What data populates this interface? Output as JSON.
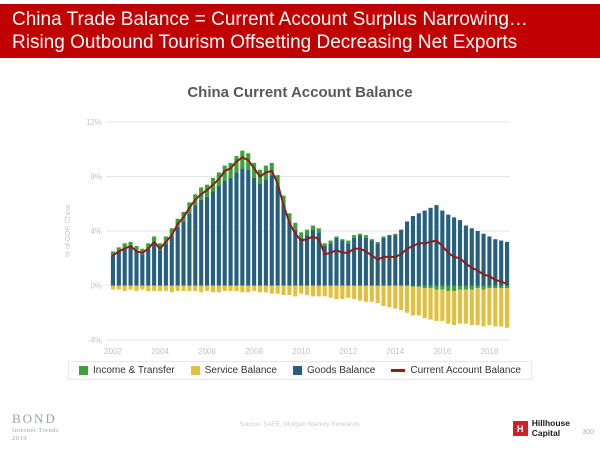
{
  "header": {
    "line1": "China Trade Balance = Current Account Surplus Narrowing…",
    "line2": "Rising Outbound Tourism Offsetting Decreasing Net Exports"
  },
  "chart_data": {
    "type": "bar",
    "stacked": true,
    "title": "China Current Account Balance",
    "xlabel": "",
    "ylabel": "% of GDP, China",
    "ylim": [
      -4,
      12
    ],
    "yticks": [
      12,
      8,
      4,
      0,
      -4
    ],
    "ytick_labels": [
      "12%",
      "8%",
      "4%",
      "0%",
      "-4%"
    ],
    "x_frequency": "quarterly",
    "x_start": "2002Q1",
    "x_tick_positions": [
      0,
      8,
      16,
      24,
      32,
      40,
      48,
      56,
      64
    ],
    "x_tick_labels": [
      "2002",
      "2004",
      "2006",
      "2008",
      "2010",
      "2012",
      "2014",
      "2016",
      "2018"
    ],
    "grid": "horizontal",
    "legend_position": "bottom",
    "stack_order": [
      2,
      0,
      1
    ],
    "line_series": 3,
    "series": [
      {
        "name": "Income & Transfer",
        "color": "#3ba13b",
        "values": [
          0.3,
          0.3,
          0.4,
          0.3,
          0.4,
          0.4,
          0.4,
          0.5,
          0.5,
          0.5,
          0.6,
          0.6,
          0.7,
          0.8,
          0.8,
          0.9,
          0.9,
          1.0,
          1.0,
          1.1,
          1.1,
          1.2,
          1.3,
          1.2,
          1.1,
          1.0,
          1.0,
          0.9,
          0.8,
          0.7,
          0.6,
          0.5,
          0.4,
          0.4,
          0.3,
          0.3,
          0.2,
          0.2,
          0.1,
          0.1,
          0.2,
          0.2,
          0.1,
          0.2,
          0.1,
          0.1,
          0.1,
          0.0,
          0.1,
          0.0,
          0.0,
          -0.1,
          -0.1,
          -0.2,
          -0.2,
          -0.3,
          -0.3,
          -0.4,
          -0.4,
          -0.3,
          -0.3,
          -0.3,
          -0.2,
          -0.3,
          -0.2,
          -0.2,
          -0.2,
          -0.2
        ]
      },
      {
        "name": "Service Balance",
        "color": "#e2c03f",
        "values": [
          -0.3,
          -0.3,
          -0.4,
          -0.3,
          -0.4,
          -0.3,
          -0.4,
          -0.4,
          -0.4,
          -0.4,
          -0.5,
          -0.4,
          -0.4,
          -0.4,
          -0.4,
          -0.5,
          -0.4,
          -0.5,
          -0.5,
          -0.4,
          -0.4,
          -0.4,
          -0.5,
          -0.5,
          -0.4,
          -0.5,
          -0.5,
          -0.6,
          -0.6,
          -0.7,
          -0.7,
          -0.8,
          -0.6,
          -0.7,
          -0.8,
          -0.8,
          -0.8,
          -0.9,
          -1.0,
          -1.0,
          -0.9,
          -1.0,
          -1.1,
          -1.2,
          -1.2,
          -1.3,
          -1.5,
          -1.6,
          -1.7,
          -1.8,
          -2.0,
          -2.1,
          -2.1,
          -2.2,
          -2.3,
          -2.3,
          -2.3,
          -2.4,
          -2.5,
          -2.5,
          -2.5,
          -2.6,
          -2.7,
          -2.7,
          -2.7,
          -2.8,
          -2.8,
          -2.9
        ]
      },
      {
        "name": "Goods Balance",
        "color": "#27607f",
        "values": [
          2.2,
          2.5,
          2.7,
          2.9,
          2.5,
          2.3,
          2.7,
          3.1,
          2.6,
          3.1,
          3.6,
          4.3,
          4.7,
          5.3,
          5.9,
          6.3,
          6.5,
          6.9,
          7.3,
          7.7,
          7.9,
          8.3,
          8.6,
          8.5,
          7.9,
          7.5,
          7.8,
          8.1,
          7.3,
          5.9,
          4.7,
          4.1,
          3.5,
          3.7,
          4.1,
          3.9,
          2.9,
          3.1,
          3.5,
          3.3,
          3.1,
          3.5,
          3.7,
          3.5,
          3.3,
          3.1,
          3.5,
          3.7,
          3.7,
          4.1,
          4.7,
          5.1,
          5.3,
          5.5,
          5.7,
          5.9,
          5.5,
          5.2,
          5.0,
          4.8,
          4.4,
          4.2,
          4.0,
          3.8,
          3.6,
          3.4,
          3.3,
          3.2
        ]
      },
      {
        "name": "Current Account Balance",
        "type": "line",
        "color": "#8f1d1d",
        "values": [
          2.2,
          2.5,
          2.7,
          2.9,
          2.5,
          2.4,
          2.7,
          3.2,
          2.7,
          3.2,
          3.7,
          4.5,
          5.0,
          5.7,
          6.3,
          6.7,
          7.0,
          7.4,
          7.8,
          8.4,
          8.6,
          9.1,
          9.4,
          9.2,
          8.6,
          8.0,
          8.3,
          8.4,
          7.5,
          5.9,
          4.6,
          3.8,
          3.3,
          3.4,
          3.6,
          3.4,
          2.3,
          2.4,
          2.6,
          2.4,
          2.4,
          2.7,
          2.7,
          2.5,
          2.2,
          1.9,
          2.1,
          2.1,
          2.1,
          2.3,
          2.7,
          2.9,
          3.1,
          3.1,
          3.2,
          3.3,
          2.9,
          2.4,
          2.1,
          2.0,
          1.6,
          1.3,
          1.1,
          0.8,
          0.7,
          0.4,
          0.3,
          0.1
        ]
      }
    ]
  },
  "footer": {
    "bond_name": "BOND",
    "bond_sub1": "Internet Trends",
    "bond_sub2": "2019",
    "source": "Source: SAFE, Morgan Stanley Research.",
    "brand_mark": "H",
    "brand_line1": "Hillhouse",
    "brand_line2": "Capital",
    "page": "300"
  }
}
